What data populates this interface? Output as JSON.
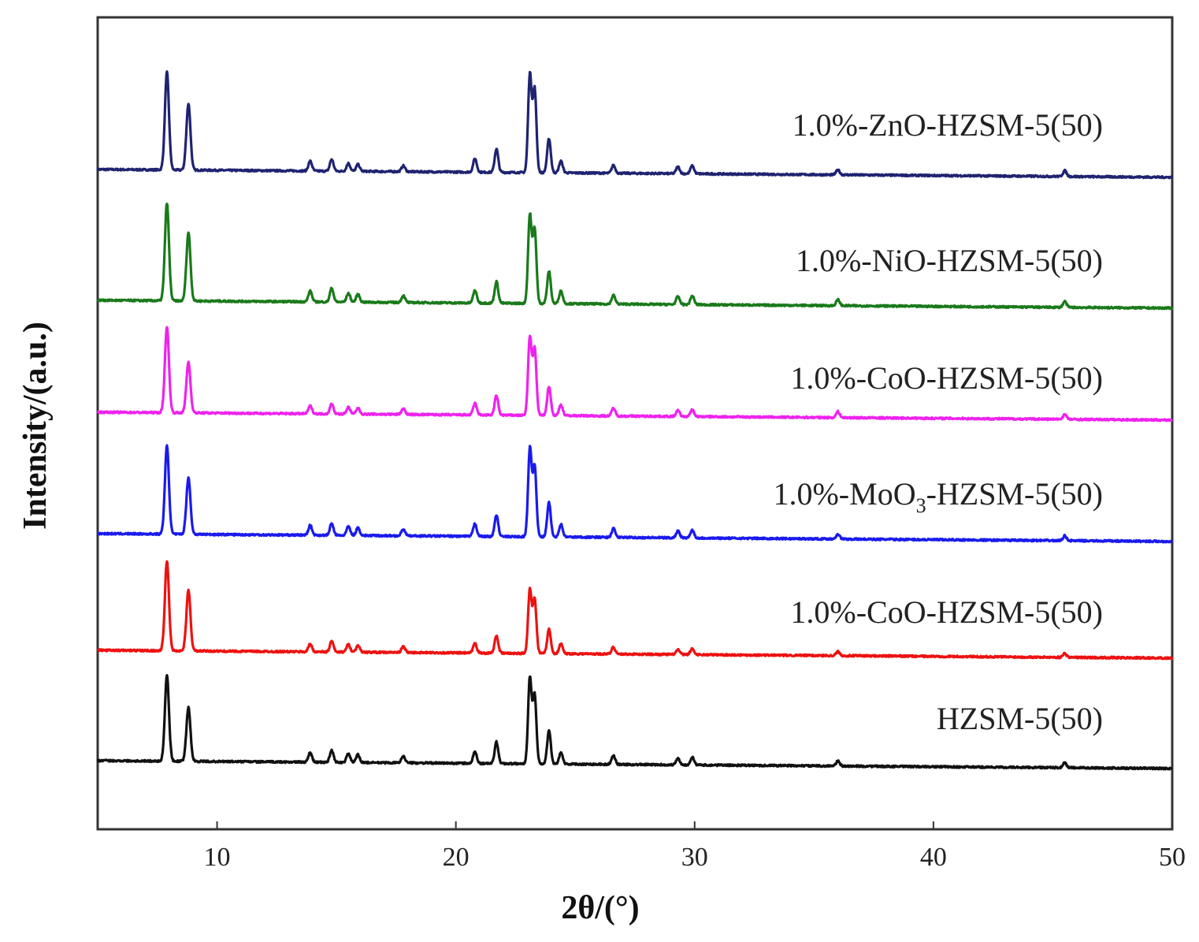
{
  "chart_data": {
    "type": "line",
    "xlabel": "2θ/(°)",
    "ylabel": "Intensity/(a.u.)",
    "xlim": [
      5,
      50
    ],
    "x_ticks": [
      "10",
      "20",
      "30",
      "40",
      "50"
    ],
    "grid": false,
    "legend": "labels placed at the right above each trace",
    "peaks_2theta": [
      7.9,
      8.8,
      13.9,
      14.8,
      15.5,
      15.9,
      17.8,
      20.8,
      21.7,
      23.1,
      23.3,
      23.9,
      24.4,
      26.6,
      29.3,
      29.9,
      36.0,
      45.5
    ],
    "series": [
      {
        "name": "1.0%-ZnO-HZSM-5(50)",
        "label_pre": "1.0%-ZnO-HZSM-5(50)",
        "label_sub": "",
        "label_post": "",
        "color": "#1f2370",
        "relative_intensities": [
          1.0,
          0.68,
          0.1,
          0.12,
          0.08,
          0.07,
          0.06,
          0.14,
          0.24,
          1.0,
          0.85,
          0.35,
          0.12,
          0.08,
          0.07,
          0.08,
          0.05,
          0.06
        ]
      },
      {
        "name": "1.0%-NiO-HZSM-5(50)",
        "label_pre": "1.0%-NiO-HZSM-5(50)",
        "label_sub": "",
        "label_post": "",
        "color": "#1a7a1a",
        "relative_intensities": [
          1.0,
          0.7,
          0.11,
          0.14,
          0.09,
          0.08,
          0.07,
          0.13,
          0.22,
          0.9,
          0.76,
          0.33,
          0.13,
          0.09,
          0.08,
          0.09,
          0.06,
          0.06
        ]
      },
      {
        "name": "1.0%-CoO-HZSM-5(50)",
        "label_pre": "1.0%-CoO-HZSM-5(50)",
        "label_sub": "",
        "label_post": "",
        "color": "#ee22ee",
        "relative_intensities": [
          0.88,
          0.52,
          0.08,
          0.1,
          0.07,
          0.06,
          0.06,
          0.12,
          0.2,
          0.8,
          0.68,
          0.3,
          0.11,
          0.08,
          0.06,
          0.07,
          0.06,
          0.05
        ]
      },
      {
        "name": "1.0%-MoO3-HZSM-5(50)",
        "label_pre": "1.0%-MoO",
        "label_sub": "3",
        "label_post": "-HZSM-5(50)",
        "color": "#1a1aee",
        "relative_intensities": [
          0.9,
          0.58,
          0.1,
          0.12,
          0.09,
          0.08,
          0.07,
          0.13,
          0.22,
          0.9,
          0.72,
          0.35,
          0.13,
          0.09,
          0.07,
          0.08,
          0.05,
          0.05
        ]
      },
      {
        "name": "1.0%-CoO-HZSM-5(50)",
        "label_pre": "1.0%-CoO-HZSM-5(50)",
        "label_sub": "",
        "label_post": "",
        "color": "#ee1111",
        "relative_intensities": [
          0.92,
          0.62,
          0.08,
          0.11,
          0.08,
          0.07,
          0.06,
          0.1,
          0.18,
          0.65,
          0.55,
          0.25,
          0.1,
          0.07,
          0.05,
          0.06,
          0.04,
          0.04
        ]
      },
      {
        "name": "HZSM-5(50)",
        "label_pre": "HZSM-5(50)",
        "label_sub": "",
        "label_post": "",
        "color": "#111111",
        "relative_intensities": [
          0.88,
          0.55,
          0.1,
          0.12,
          0.09,
          0.08,
          0.07,
          0.12,
          0.22,
          0.88,
          0.7,
          0.34,
          0.12,
          0.09,
          0.07,
          0.08,
          0.05,
          0.05
        ]
      }
    ]
  }
}
